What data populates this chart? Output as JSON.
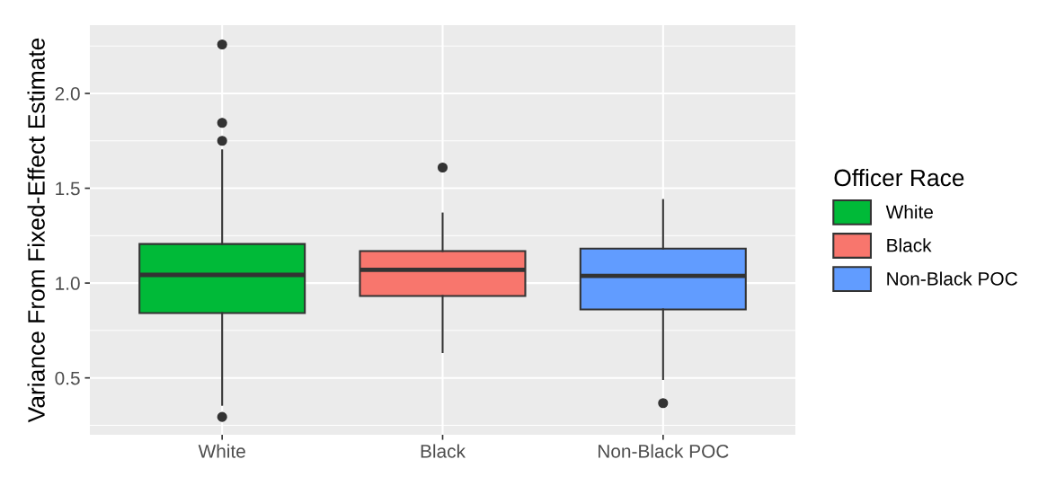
{
  "chart_data": {
    "type": "box",
    "ylabel": "Variance From Fixed-Effect Estimate",
    "legend_title": "Officer Race",
    "categories": [
      "White",
      "Black",
      "Non-Black POC"
    ],
    "series": [
      {
        "name": "White",
        "color": "#00ba38",
        "boxes": [
          {
            "low": 0.358,
            "q1": 0.842,
            "median": 1.043,
            "q3": 1.206,
            "high": 1.7,
            "outliers": [
              2.258,
              1.845,
              1.75,
              0.294
            ]
          },
          null,
          null
        ]
      },
      {
        "name": "Black",
        "color": "#f8766d",
        "boxes": [
          null,
          {
            "low": 0.636,
            "q1": 0.932,
            "median": 1.07,
            "q3": 1.169,
            "high": 1.367,
            "outliers": [
              1.609
            ]
          },
          null
        ]
      },
      {
        "name": "Non-Black POC",
        "color": "#619cff",
        "boxes": [
          null,
          null,
          {
            "low": 0.494,
            "q1": 0.861,
            "median": 1.038,
            "q3": 1.182,
            "high": 1.438,
            "outliers": [
              0.367
            ]
          }
        ]
      }
    ],
    "ylim": [
      0.2,
      2.36
    ],
    "yticks": [
      {
        "value": 0.5,
        "label": "0.5"
      },
      {
        "value": 1.0,
        "label": "1.0"
      },
      {
        "value": 1.5,
        "label": "1.5"
      },
      {
        "value": 2.0,
        "label": "2.0"
      }
    ],
    "grid": true,
    "legend": "right"
  }
}
